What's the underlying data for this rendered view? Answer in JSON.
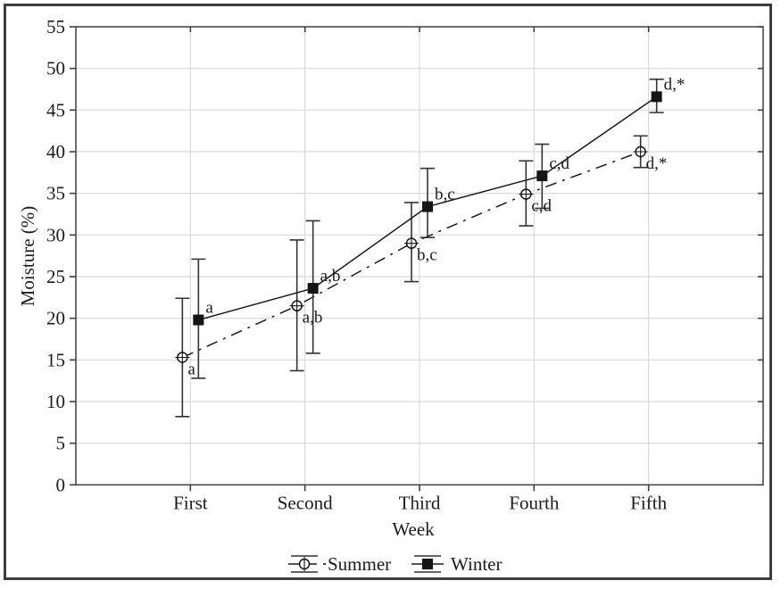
{
  "chart_data": {
    "type": "line",
    "title": "",
    "xlabel": "Week",
    "ylabel": "Moisture (%)",
    "ylim": [
      0,
      55
    ],
    "ytick_step": 5,
    "yticks": [
      "0",
      "5",
      "10",
      "15",
      "20",
      "25",
      "30",
      "35",
      "40",
      "45",
      "50",
      "55"
    ],
    "grid": true,
    "legend_position": "bottom-center",
    "categories": [
      "First",
      "Second",
      "Third",
      "Fourth",
      "Fifth"
    ],
    "series": [
      {
        "name": "Summer",
        "marker": "open-circle-cross",
        "line_style": "dash-dot",
        "color": "#1a1a1a",
        "values": [
          15.3,
          21.5,
          29.0,
          34.9,
          40.0
        ],
        "err_low": [
          8.2,
          13.7,
          24.4,
          31.1,
          38.1
        ],
        "err_high": [
          22.4,
          29.4,
          33.9,
          38.9,
          41.9
        ],
        "point_labels": [
          "a",
          "a,b",
          "b,c",
          "c,d",
          "d,*"
        ],
        "label_side": "below"
      },
      {
        "name": "Winter",
        "marker": "filled-square",
        "line_style": "solid",
        "color": "#1a1a1a",
        "values": [
          19.8,
          23.6,
          33.4,
          37.1,
          46.6
        ],
        "err_low": [
          12.8,
          15.8,
          29.7,
          33.2,
          44.7
        ],
        "err_high": [
          27.1,
          31.7,
          38.0,
          40.9,
          48.7
        ],
        "point_labels": [
          "a",
          "a,b",
          "b,c",
          "c,d",
          "d,*"
        ],
        "label_side": "above"
      }
    ],
    "colors": {
      "frame": "#4a4a4a",
      "grid": "#dadada",
      "tick": "#3f3f3f",
      "text": "#1c1c1c",
      "marker": "#151515",
      "error_bar": "#333333",
      "outer_border": "#3d3d3d",
      "background": "#ffffff"
    }
  }
}
